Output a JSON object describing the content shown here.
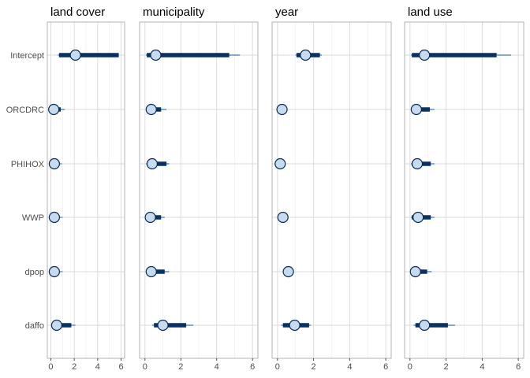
{
  "chart_data": {
    "type": "interval-dot",
    "y_categories": [
      "Intercept",
      "ORCDRC",
      "PHIHOX",
      "WWP",
      "dpop",
      "daffo"
    ],
    "xlim": [
      -0.3,
      6.3
    ],
    "x_ticks": [
      0,
      2,
      4,
      6
    ],
    "grid": true,
    "colors": {
      "thick_interval": "#0a3161",
      "thin_interval": "#5b8ec6",
      "point_fill": "#c6dbef",
      "point_stroke": "#0a2a4f",
      "grid_major": "#d9d9d9",
      "grid_minor": "#ececec",
      "panel_border": "#b3b3b3"
    },
    "panels": [
      {
        "title": "land cover",
        "rows": [
          {
            "term": "Intercept",
            "point": 2.1,
            "inner": [
              0.7,
              5.8
            ],
            "outer": [
              0.6,
              5.8
            ]
          },
          {
            "term": "ORCDRC",
            "point": 0.25,
            "inner": [
              0.1,
              0.85
            ],
            "outer": [
              0.05,
              1.2
            ]
          },
          {
            "term": "PHIHOX",
            "point": 0.3,
            "inner": [
              0.1,
              0.75
            ],
            "outer": [
              0.05,
              0.95
            ]
          },
          {
            "term": "WWP",
            "point": 0.3,
            "inner": [
              0.1,
              0.75
            ],
            "outer": [
              0.05,
              1.0
            ]
          },
          {
            "term": "dpop",
            "point": 0.3,
            "inner": [
              0.1,
              0.75
            ],
            "outer": [
              0.05,
              1.0
            ]
          },
          {
            "term": "daffo",
            "point": 0.5,
            "inner": [
              0.2,
              1.75
            ],
            "outer": [
              0.1,
              2.1
            ]
          }
        ]
      },
      {
        "title": "municipality",
        "rows": [
          {
            "term": "Intercept",
            "point": 0.6,
            "inner": [
              0.1,
              4.7
            ],
            "outer": [
              0.05,
              5.3
            ]
          },
          {
            "term": "ORCDRC",
            "point": 0.35,
            "inner": [
              0.1,
              0.9
            ],
            "outer": [
              0.05,
              1.2
            ]
          },
          {
            "term": "PHIHOX",
            "point": 0.4,
            "inner": [
              0.1,
              1.2
            ],
            "outer": [
              0.05,
              1.35
            ]
          },
          {
            "term": "WWP",
            "point": 0.3,
            "inner": [
              0.1,
              0.9
            ],
            "outer": [
              0.05,
              1.1
            ]
          },
          {
            "term": "dpop",
            "point": 0.35,
            "inner": [
              0.1,
              1.1
            ],
            "outer": [
              0.05,
              1.35
            ]
          },
          {
            "term": "daffo",
            "point": 1.0,
            "inner": [
              0.5,
              2.3
            ],
            "outer": [
              0.4,
              2.7
            ]
          }
        ]
      },
      {
        "title": "year",
        "rows": [
          {
            "term": "Intercept",
            "point": 1.55,
            "inner": [
              1.05,
              2.35
            ],
            "outer": [
              1.0,
              2.45
            ]
          },
          {
            "term": "ORCDRC",
            "point": 0.25,
            "inner": [
              0.1,
              0.5
            ],
            "outer": [
              0.05,
              0.55
            ]
          },
          {
            "term": "PHIHOX",
            "point": 0.15,
            "inner": [
              0.05,
              0.35
            ],
            "outer": [
              0.02,
              0.4
            ]
          },
          {
            "term": "WWP",
            "point": 0.3,
            "inner": [
              0.1,
              0.45
            ],
            "outer": [
              0.05,
              0.5
            ]
          },
          {
            "term": "dpop",
            "point": 0.6,
            "inner": [
              0.35,
              0.85
            ],
            "outer": [
              0.3,
              0.9
            ]
          },
          {
            "term": "daffo",
            "point": 0.95,
            "inner": [
              0.3,
              1.75
            ],
            "outer": [
              0.2,
              1.85
            ]
          }
        ]
      },
      {
        "title": "land use",
        "rows": [
          {
            "term": "Intercept",
            "point": 0.8,
            "inner": [
              0.1,
              4.8
            ],
            "outer": [
              0.05,
              5.6
            ]
          },
          {
            "term": "ORCDRC",
            "point": 0.35,
            "inner": [
              0.1,
              1.1
            ],
            "outer": [
              0.05,
              1.35
            ]
          },
          {
            "term": "PHIHOX",
            "point": 0.4,
            "inner": [
              0.1,
              1.15
            ],
            "outer": [
              0.05,
              1.35
            ]
          },
          {
            "term": "WWP",
            "point": 0.45,
            "inner": [
              0.1,
              1.15
            ],
            "outer": [
              0.05,
              1.35
            ]
          },
          {
            "term": "dpop",
            "point": 0.3,
            "inner": [
              0.1,
              0.95
            ],
            "outer": [
              0.05,
              1.2
            ]
          },
          {
            "term": "daffo",
            "point": 0.8,
            "inner": [
              0.3,
              2.1
            ],
            "outer": [
              0.2,
              2.5
            ]
          }
        ]
      }
    ]
  }
}
